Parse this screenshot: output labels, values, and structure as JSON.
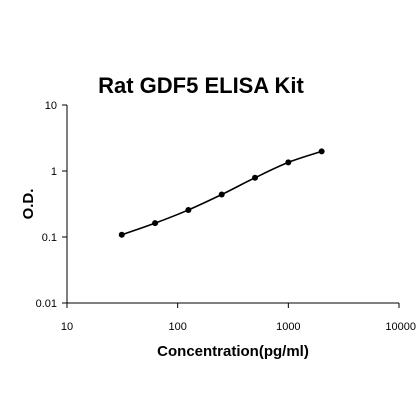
{
  "chart_data": {
    "type": "line",
    "title": "Rat GDF5 ELISA Kit",
    "xlabel": "Concentration(pg/ml)",
    "ylabel": "O.D.",
    "x_scale": "log",
    "y_scale": "log",
    "xlim": [
      10,
      10000
    ],
    "ylim": [
      0.01,
      10
    ],
    "x_ticks": [
      "10",
      "100",
      "1000",
      "10000"
    ],
    "y_ticks": [
      "0.01",
      "0.1",
      "1",
      "10"
    ],
    "grid": false,
    "legend": "none",
    "series": [
      {
        "x": [
          31.25,
          62.5,
          125,
          250,
          500,
          1000,
          2000
        ],
        "y": [
          0.108,
          0.162,
          0.257,
          0.44,
          0.79,
          1.35,
          1.98
        ]
      }
    ],
    "colors": {
      "line": "#000000",
      "marker": "#000000",
      "axis": "#000000"
    }
  }
}
